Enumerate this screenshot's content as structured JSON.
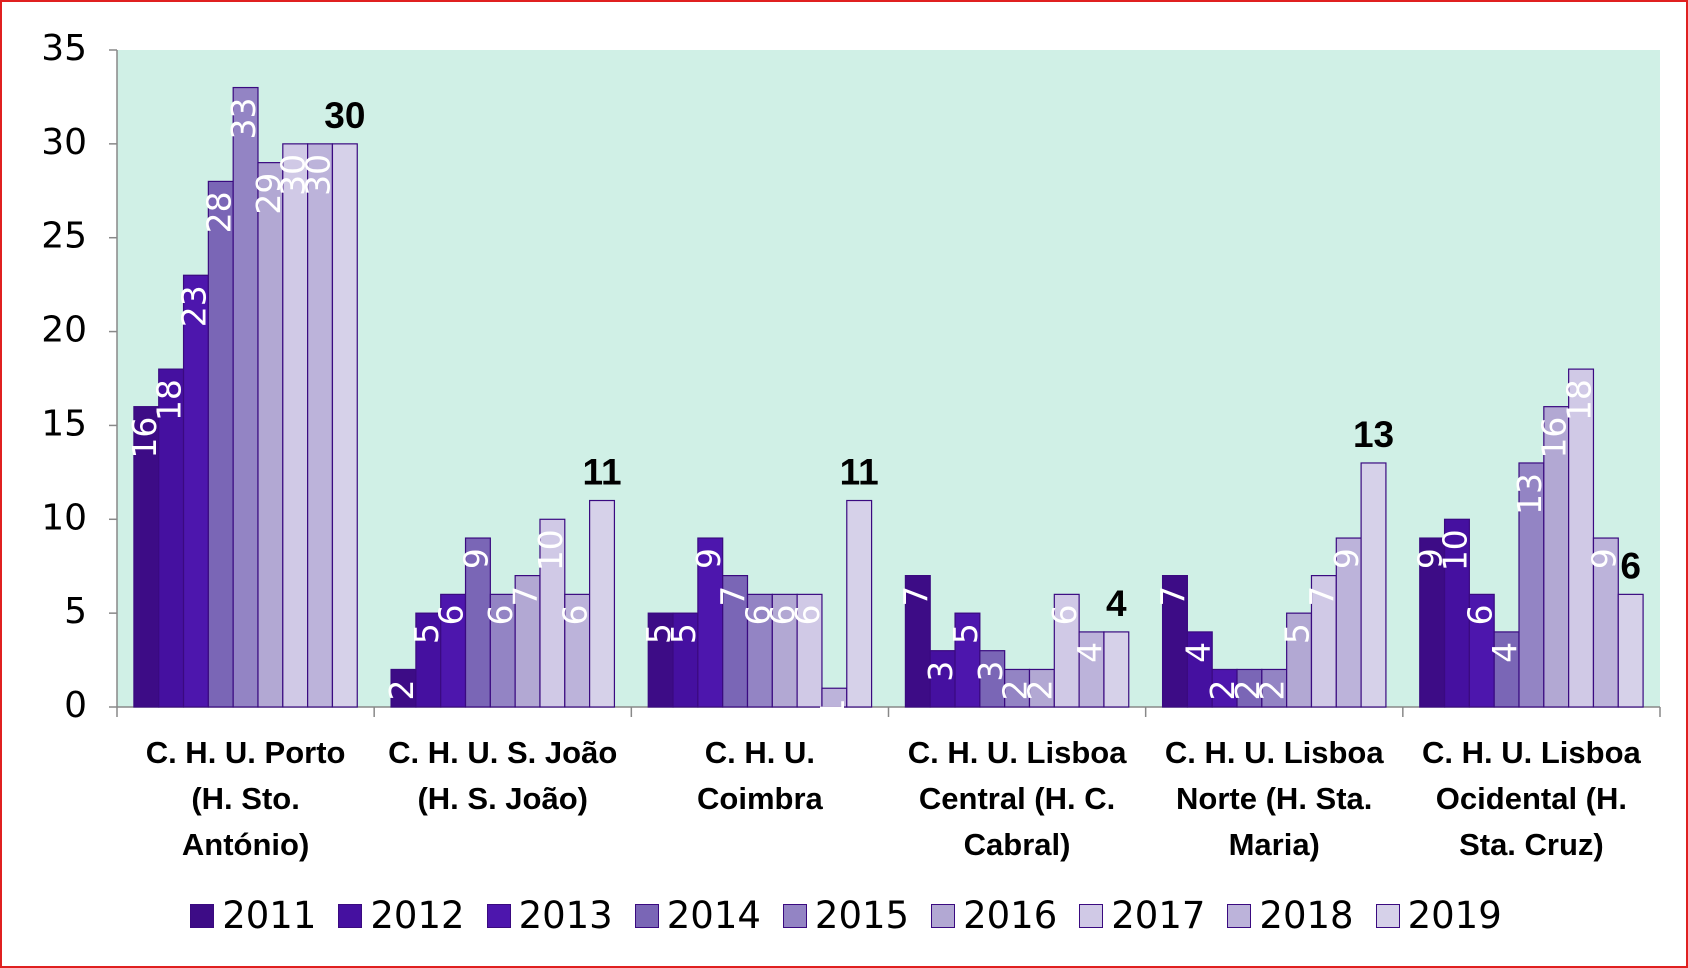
{
  "chart_data": {
    "type": "bar",
    "categories": [
      "C. H. U. Porto (H. Sto. António)",
      "C. H. U. S. João (H. S. João)",
      "C. H. U. Coimbra",
      "C. H. U. Lisboa Central (H. C. Cabral)",
      "C. H. U. Lisboa Norte (H. Sta. Maria)",
      "C. H. U. Lisboa Ocidental (H. Sta. Cruz)"
    ],
    "series": [
      {
        "name": "2011",
        "color": "#3d0c86",
        "values": [
          16,
          2,
          5,
          7,
          7,
          9
        ]
      },
      {
        "name": "2012",
        "color": "#4510a0",
        "values": [
          18,
          5,
          5,
          3,
          4,
          10
        ]
      },
      {
        "name": "2013",
        "color": "#4d16ad",
        "values": [
          23,
          6,
          9,
          5,
          2,
          6
        ]
      },
      {
        "name": "2014",
        "color": "#7a66b6",
        "values": [
          28,
          9,
          7,
          3,
          2,
          4
        ]
      },
      {
        "name": "2015",
        "color": "#9384c4",
        "values": [
          33,
          6,
          6,
          2,
          2,
          13
        ]
      },
      {
        "name": "2016",
        "color": "#b2a8d3",
        "values": [
          29,
          7,
          6,
          2,
          5,
          16
        ]
      },
      {
        "name": "2017",
        "color": "#d0c9e6",
        "values": [
          30,
          10,
          6,
          6,
          7,
          18
        ]
      },
      {
        "name": "2018",
        "color": "#bcb3da",
        "values": [
          30,
          6,
          1,
          4,
          9,
          9
        ]
      },
      {
        "name": "2019",
        "color": "#d6d1e9",
        "values": [
          30,
          11,
          11,
          4,
          13,
          6
        ]
      }
    ],
    "ylim": [
      0,
      35
    ],
    "yticks": [
      0,
      5,
      10,
      15,
      20,
      25,
      30,
      35
    ],
    "grid": false,
    "legend": "bottom"
  }
}
